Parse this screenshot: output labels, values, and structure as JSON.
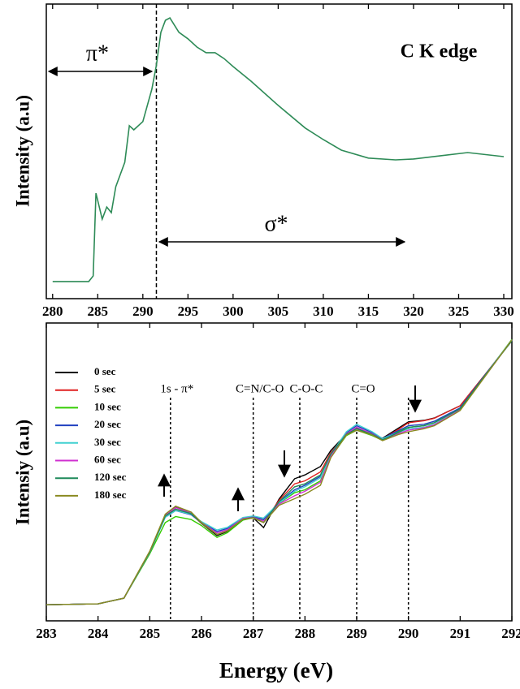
{
  "chart_data": [
    {
      "type": "line",
      "y_label": "Intensity (a.u)",
      "annotations": [
        "π*",
        "σ*",
        "C K edge"
      ],
      "x": [
        280,
        284,
        284.5,
        284.8,
        285.5,
        286,
        286.5,
        287,
        288,
        288.5,
        289,
        290,
        291,
        291.5,
        292,
        292.5,
        293,
        294,
        295,
        296,
        297,
        298,
        299,
        300,
        302,
        305,
        308,
        310,
        312,
        315,
        318,
        320,
        323,
        326,
        330
      ],
      "values": [
        0.058,
        0.058,
        0.077,
        0.358,
        0.27,
        0.311,
        0.292,
        0.38,
        0.463,
        0.587,
        0.573,
        0.601,
        0.711,
        0.793,
        0.904,
        0.945,
        0.953,
        0.904,
        0.882,
        0.854,
        0.835,
        0.835,
        0.815,
        0.788,
        0.738,
        0.656,
        0.579,
        0.54,
        0.504,
        0.477,
        0.471,
        0.474,
        0.485,
        0.496,
        0.482
      ],
      "color": "#2e8b57",
      "xlim": [
        279.3,
        330.9
      ],
      "ylim": [
        0,
        1
      ],
      "xticks": [
        280,
        285,
        290,
        295,
        300,
        305,
        310,
        315,
        320,
        325,
        330
      ],
      "vlines": [
        291.5
      ]
    },
    {
      "type": "line",
      "x_label": "Energy (eV)",
      "y_label": "Intensiy (a.u)",
      "x": [
        283,
        284,
        284.5,
        285,
        285.3,
        285.5,
        285.8,
        286,
        286.3,
        286.5,
        286.8,
        287,
        287.2,
        287.5,
        287.8,
        288,
        288.3,
        288.5,
        288.8,
        289,
        289.3,
        289.5,
        289.8,
        290,
        290.3,
        290.5,
        291,
        291.5,
        292
      ],
      "series": [
        {
          "name": "0 sec",
          "color": "#000000",
          "values": [
            0.054,
            0.057,
            0.076,
            0.232,
            0.354,
            0.381,
            0.362,
            0.327,
            0.286,
            0.3,
            0.341,
            0.346,
            0.313,
            0.409,
            0.477,
            0.49,
            0.518,
            0.572,
            0.627,
            0.646,
            0.627,
            0.613,
            0.646,
            0.668,
            0.673,
            0.681,
            0.722,
            0.831,
            0.94
          ]
        },
        {
          "name": "5 sec",
          "color": "#e02020",
          "values": [
            0.054,
            0.057,
            0.076,
            0.232,
            0.35,
            0.375,
            0.358,
            0.327,
            0.29,
            0.302,
            0.341,
            0.346,
            0.33,
            0.405,
            0.46,
            0.47,
            0.5,
            0.565,
            0.625,
            0.64,
            0.625,
            0.611,
            0.642,
            0.665,
            0.672,
            0.68,
            0.722,
            0.831,
            0.942
          ]
        },
        {
          "name": "10 sec",
          "color": "#33cc00",
          "values": [
            0.054,
            0.057,
            0.076,
            0.225,
            0.33,
            0.35,
            0.34,
            0.32,
            0.28,
            0.296,
            0.338,
            0.346,
            0.34,
            0.395,
            0.43,
            0.44,
            0.47,
            0.55,
            0.622,
            0.64,
            0.622,
            0.606,
            0.635,
            0.65,
            0.655,
            0.665,
            0.712,
            0.828,
            0.945
          ]
        },
        {
          "name": "20 sec",
          "color": "#2040c0",
          "values": [
            0.054,
            0.057,
            0.076,
            0.23,
            0.348,
            0.37,
            0.356,
            0.33,
            0.3,
            0.31,
            0.345,
            0.35,
            0.34,
            0.398,
            0.44,
            0.455,
            0.485,
            0.56,
            0.632,
            0.655,
            0.632,
            0.612,
            0.638,
            0.655,
            0.66,
            0.67,
            0.715,
            0.83,
            0.942
          ]
        },
        {
          "name": "30 sec",
          "color": "#40d0d0",
          "values": [
            0.054,
            0.057,
            0.076,
            0.23,
            0.348,
            0.37,
            0.358,
            0.333,
            0.305,
            0.314,
            0.347,
            0.352,
            0.345,
            0.396,
            0.435,
            0.45,
            0.48,
            0.558,
            0.635,
            0.66,
            0.635,
            0.612,
            0.632,
            0.645,
            0.65,
            0.66,
            0.71,
            0.828,
            0.944
          ]
        },
        {
          "name": "60 sec",
          "color": "#d030d0",
          "values": [
            0.054,
            0.057,
            0.076,
            0.232,
            0.355,
            0.38,
            0.362,
            0.33,
            0.295,
            0.306,
            0.343,
            0.348,
            0.335,
            0.392,
            0.42,
            0.435,
            0.465,
            0.552,
            0.628,
            0.65,
            0.628,
            0.608,
            0.628,
            0.64,
            0.648,
            0.658,
            0.708,
            0.826,
            0.943
          ]
        },
        {
          "name": "120 sec",
          "color": "#1f8a5a",
          "values": [
            0.054,
            0.057,
            0.076,
            0.232,
            0.352,
            0.375,
            0.36,
            0.328,
            0.29,
            0.302,
            0.341,
            0.347,
            0.33,
            0.4,
            0.45,
            0.46,
            0.49,
            0.56,
            0.626,
            0.645,
            0.626,
            0.608,
            0.632,
            0.65,
            0.655,
            0.665,
            0.712,
            0.828,
            0.941
          ]
        },
        {
          "name": "180 sec",
          "color": "#8a8a20",
          "values": [
            0.054,
            0.057,
            0.076,
            0.234,
            0.358,
            0.385,
            0.365,
            0.33,
            0.29,
            0.302,
            0.341,
            0.345,
            0.33,
            0.388,
            0.41,
            0.425,
            0.455,
            0.548,
            0.624,
            0.64,
            0.624,
            0.605,
            0.625,
            0.635,
            0.645,
            0.655,
            0.706,
            0.825,
            0.944
          ]
        }
      ],
      "xlim": [
        283,
        292
      ],
      "ylim": [
        0,
        1
      ],
      "xticks": [
        283,
        284,
        285,
        286,
        287,
        288,
        289,
        290,
        291,
        292
      ],
      "vlines": [
        {
          "x": 285.4,
          "label": "1s - π*"
        },
        {
          "x": 287.0,
          "label": "C=N/C-O"
        },
        {
          "x": 287.9,
          "label": "C-O-C"
        },
        {
          "x": 289.0,
          "label": "C=O"
        },
        {
          "x": 290.0
        }
      ]
    }
  ]
}
